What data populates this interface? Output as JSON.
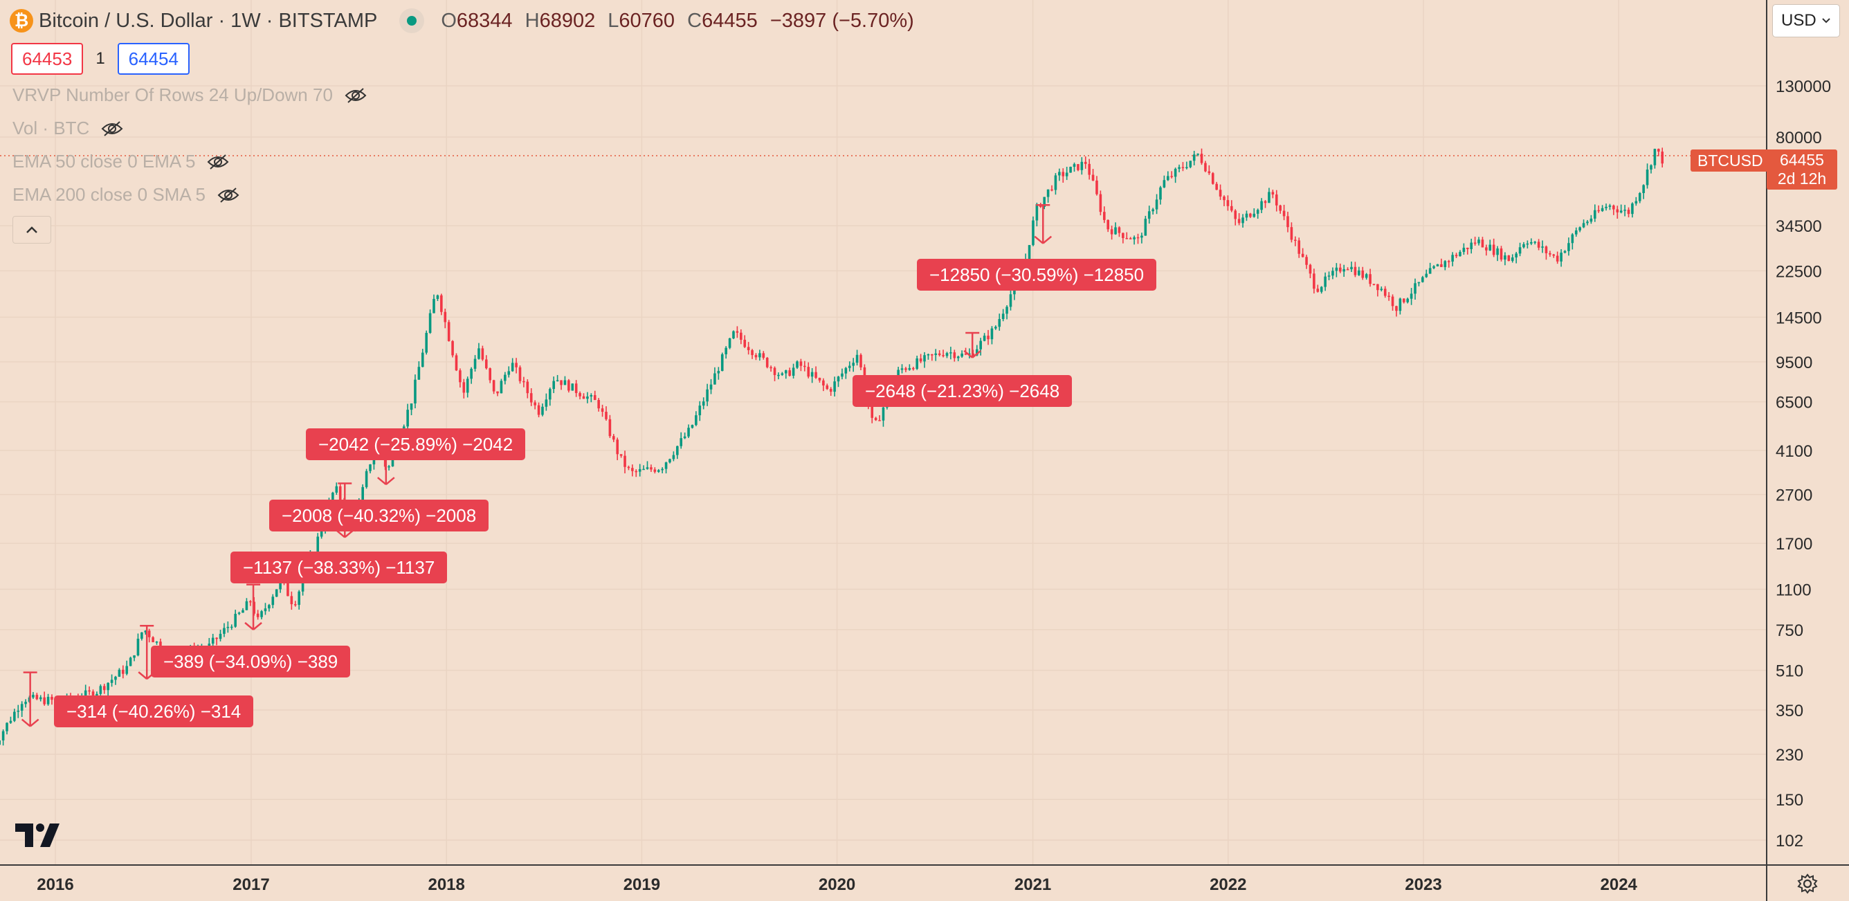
{
  "header": {
    "symbol_icon": "bitcoin-icon",
    "title": "Bitcoin / U.S. Dollar · 1W · BITSTAMP",
    "ohlc": [
      {
        "k": "O",
        "v": "68344"
      },
      {
        "k": "H",
        "v": "68902"
      },
      {
        "k": "L",
        "v": "60760"
      },
      {
        "k": "C",
        "v": "64455"
      }
    ],
    "change": "−3897 (−5.70%)"
  },
  "trade": {
    "sell_price": "64453",
    "quantity": "1",
    "buy_price": "64454"
  },
  "indicators": [
    {
      "label": "VRVP Number Of Rows 24 Up/Down 70",
      "icon": "eye-off-icon"
    },
    {
      "label": "Vol · BTC",
      "icon": "eye-off-icon"
    },
    {
      "label": "EMA 50 close 0 EMA 5",
      "icon": "eye-off-icon"
    },
    {
      "label": "EMA 200 close 0 SMA 5",
      "icon": "eye-off-icon"
    }
  ],
  "collapse_icon": "chevron-up-icon",
  "currency": {
    "value": "USD"
  },
  "price_tag": {
    "symbol": "BTCUSD",
    "price": "64455",
    "countdown": "2d 12h"
  },
  "settings_icon": "gear-icon",
  "logo_icon": "tradingview-logo-icon",
  "colors": {
    "up": "#089981",
    "down": "#f23645",
    "background": "#f3dfcf",
    "drawdown": "#e8414f",
    "last_price": "#e4593e"
  },
  "chart_data": {
    "type": "candlestick",
    "scale": "log",
    "interval": "1W",
    "ylim": [
      88,
      270000
    ],
    "y_ticks": [
      "130000",
      "80000",
      "34500",
      "22500",
      "14500",
      "9500",
      "6500",
      "4100",
      "2700",
      "1700",
      "1100",
      "750",
      "510",
      "350",
      "230",
      "150",
      "102"
    ],
    "x_ticks": [
      "2016",
      "2017",
      "2018",
      "2019",
      "2020",
      "2021",
      "2022",
      "2023",
      "2024"
    ],
    "last_price": 64455,
    "price_path": [
      [
        "2015-09-01",
        230
      ],
      [
        "2015-11-05",
        390
      ],
      [
        "2016-01-15",
        380
      ],
      [
        "2016-03-20",
        415
      ],
      [
        "2016-05-20",
        530
      ],
      [
        "2016-06-17",
        760
      ],
      [
        "2016-08-05",
        580
      ],
      [
        "2016-10-15",
        630
      ],
      [
        "2016-12-20",
        900
      ],
      [
        "2017-01-05",
        1000
      ],
      [
        "2017-01-15",
        800
      ],
      [
        "2017-03-01",
        1200
      ],
      [
        "2017-03-25",
        950
      ],
      [
        "2017-05-10",
        1800
      ],
      [
        "2017-06-10",
        2900
      ],
      [
        "2017-07-15",
        1950
      ],
      [
        "2017-08-10",
        3400
      ],
      [
        "2017-09-01",
        4800
      ],
      [
        "2017-09-15",
        3300
      ],
      [
        "2017-11-01",
        6700
      ],
      [
        "2017-12-17",
        19000
      ],
      [
        "2018-02-05",
        7000
      ],
      [
        "2018-03-05",
        11000
      ],
      [
        "2018-04-05",
        6800
      ],
      [
        "2018-05-05",
        9500
      ],
      [
        "2018-06-25",
        5900
      ],
      [
        "2018-07-25",
        8200
      ],
      [
        "2018-10-15",
        6400
      ],
      [
        "2018-11-25",
        3800
      ],
      [
        "2018-12-15",
        3300
      ],
      [
        "2019-02-10",
        3500
      ],
      [
        "2019-04-05",
        5000
      ],
      [
        "2019-06-26",
        12500
      ],
      [
        "2019-08-01",
        10500
      ],
      [
        "2019-09-25",
        8200
      ],
      [
        "2019-10-25",
        9300
      ],
      [
        "2019-12-20",
        7200
      ],
      [
        "2020-02-12",
        10300
      ],
      [
        "2020-03-13",
        5000
      ],
      [
        "2020-04-30",
        8800
      ],
      [
        "2020-07-25",
        10500
      ],
      [
        "2020-09-05",
        10000
      ],
      [
        "2020-10-25",
        13000
      ],
      [
        "2020-12-20",
        24000
      ],
      [
        "2021-01-10",
        40000
      ],
      [
        "2021-02-20",
        55000
      ],
      [
        "2021-04-14",
        63000
      ],
      [
        "2021-05-22",
        34000
      ],
      [
        "2021-07-20",
        30000
      ],
      [
        "2021-09-05",
        52000
      ],
      [
        "2021-11-10",
        68000
      ],
      [
        "2022-01-22",
        35000
      ],
      [
        "2022-03-28",
        47000
      ],
      [
        "2022-06-18",
        19000
      ],
      [
        "2022-08-12",
        24000
      ],
      [
        "2022-10-15",
        19300
      ],
      [
        "2022-11-15",
        16000
      ],
      [
        "2023-01-20",
        22500
      ],
      [
        "2023-03-20",
        27500
      ],
      [
        "2023-04-15",
        30000
      ],
      [
        "2023-06-15",
        25000
      ],
      [
        "2023-07-15",
        30500
      ],
      [
        "2023-09-11",
        25200
      ],
      [
        "2023-10-25",
        34500
      ],
      [
        "2023-12-15",
        42000
      ],
      [
        "2024-01-22",
        39000
      ],
      [
        "2024-02-20",
        52000
      ],
      [
        "2024-03-13",
        72000
      ],
      [
        "2024-03-24",
        64455
      ]
    ],
    "drawdowns": [
      {
        "label": "−314 (−40.26%) −314",
        "date": "2015-11-15",
        "high": 500,
        "low": 300
      },
      {
        "label": "−389 (−34.09%) −389",
        "date": "2016-06-20",
        "high": 778,
        "low": 470
      },
      {
        "label": "−1137 (−38.33%) −1137",
        "date": "2017-01-05",
        "high": 1150,
        "low": 750
      },
      {
        "label": "−2008 (−40.32%) −2008",
        "date": "2017-06-25",
        "high": 3000,
        "low": 1800
      },
      {
        "label": "−2042 (−25.89%) −2042",
        "date": "2017-09-10",
        "high": 4950,
        "low": 2970
      },
      {
        "label": "−2648 (−21.23%) −2648",
        "date": "2020-09-10",
        "high": 12500,
        "low": 9880
      },
      {
        "label": "−12850 (−30.59%) −12850",
        "date": "2021-01-20",
        "high": 42000,
        "low": 29200
      }
    ]
  }
}
